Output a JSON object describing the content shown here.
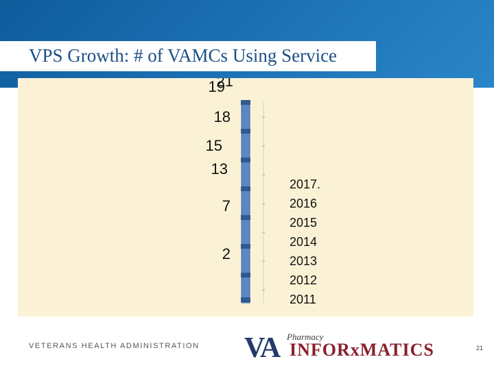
{
  "slide": {
    "title": "VPS Growth: # of VAMCs Using Service",
    "footer": "VETERANS HEALTH ADMINISTRATION",
    "page_number": "21",
    "logo": {
      "va": "VA",
      "pharmacy": "Pharmacy",
      "informatics": "INFORxMATICS"
    }
  },
  "colors": {
    "banner": "#1a6fb2",
    "title": "#1b4f86",
    "panel": "#fbf2d6",
    "bar_fill": "#5b87c5",
    "bar_edge": "#3b6aa8",
    "marker": "#2f5a8f",
    "tick": "#9a9a9a",
    "text": "#111111"
  },
  "chart_data": {
    "type": "bar",
    "title": "VPS Growth: # of VAMCs Using Service",
    "orientation": "collapsed (rendered as a thin stacked column with overlapping labels)",
    "categories": [
      "2017.",
      "2016",
      "2015",
      "2014",
      "2013",
      "2012",
      "2011"
    ],
    "values": [
      21,
      19,
      18,
      15,
      13,
      7,
      2
    ],
    "data_labels": [
      "21",
      "19",
      "18",
      "15",
      "13",
      "7",
      "2"
    ],
    "xlabel": "",
    "ylabel": "",
    "ylim": [
      0,
      21
    ],
    "legend": "none",
    "grid": false
  }
}
